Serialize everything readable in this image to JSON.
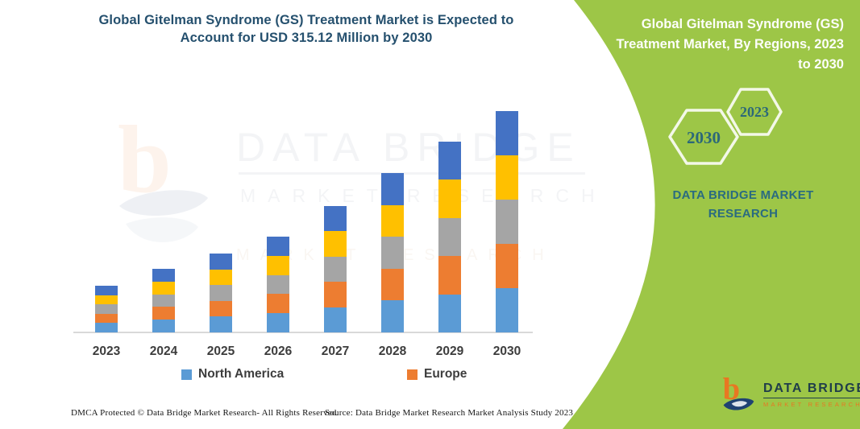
{
  "left_panel": {
    "title": "Global Gitelman Syndrome (GS) Treatment Market is Expected to Account for USD 315.12 Million by 2030",
    "watermark": {
      "brand": "DATA BRIDGE",
      "sub": "MARKET RESEARCH",
      "sub2": "MARKET RESEARCH"
    },
    "footer_dmca": "DMCA Protected © Data Bridge Market Research-  All Rights Reserved.",
    "footer_source": "Source: Data Bridge Market Research  Market Analysis Study 2023"
  },
  "right_panel": {
    "bg_color": "#9DC647",
    "title": "Global Gitelman Syndrome (GS) Treatment Market, By Regions, 2023 to 2030",
    "hexagons": [
      {
        "label": "2030"
      },
      {
        "label": "2023"
      }
    ],
    "brand_line1": "DATA BRIDGE MARKET",
    "brand_line2": "RESEARCH",
    "logo": {
      "brand": "DATA BRIDGE",
      "sub": "MARKET RESEARCH"
    }
  },
  "chart_data": {
    "type": "bar",
    "stacked": true,
    "title": "Global Gitelman Syndrome (GS) Treatment Market, By Regions, 2023 to 2030",
    "unit": "USD Million",
    "categories": [
      "2023",
      "2024",
      "2025",
      "2026",
      "2027",
      "2028",
      "2029",
      "2030"
    ],
    "series": [
      {
        "name": "North America",
        "color": "#5B9BD5",
        "values": [
          13.3,
          18.1,
          22.5,
          27.3,
          36.0,
          45.4,
          54.3,
          63.0
        ]
      },
      {
        "name": "Europe",
        "color": "#ED7D31",
        "values": [
          13.3,
          18.1,
          22.5,
          27.3,
          36.0,
          45.4,
          54.3,
          63.0
        ]
      },
      {
        "name": "(unlabeled gray region)",
        "color": "#A5A5A5",
        "values": [
          13.3,
          18.1,
          22.5,
          27.3,
          36.0,
          45.4,
          54.3,
          63.0
        ]
      },
      {
        "name": "(unlabeled yellow region)",
        "color": "#FFC000",
        "values": [
          13.3,
          18.1,
          22.5,
          27.3,
          36.0,
          45.4,
          54.3,
          63.0
        ]
      },
      {
        "name": "(unlabeled blue region)",
        "color": "#4472C4",
        "values": [
          13.3,
          18.1,
          22.5,
          27.3,
          36.0,
          45.4,
          54.3,
          63.0
        ]
      }
    ],
    "totals": [
      66.5,
      90.5,
      112.3,
      136.4,
      179.9,
      226.9,
      271.6,
      315.12
    ],
    "legend": [
      "North America",
      "Europe"
    ],
    "legend_position": "bottom",
    "xlabel": "",
    "ylabel": "",
    "y_axis_shown": false,
    "gridlines": false,
    "note": "Values estimated from bar heights; 2030 total anchored to stated USD 315.12 Million; segments appear equal within each year."
  }
}
